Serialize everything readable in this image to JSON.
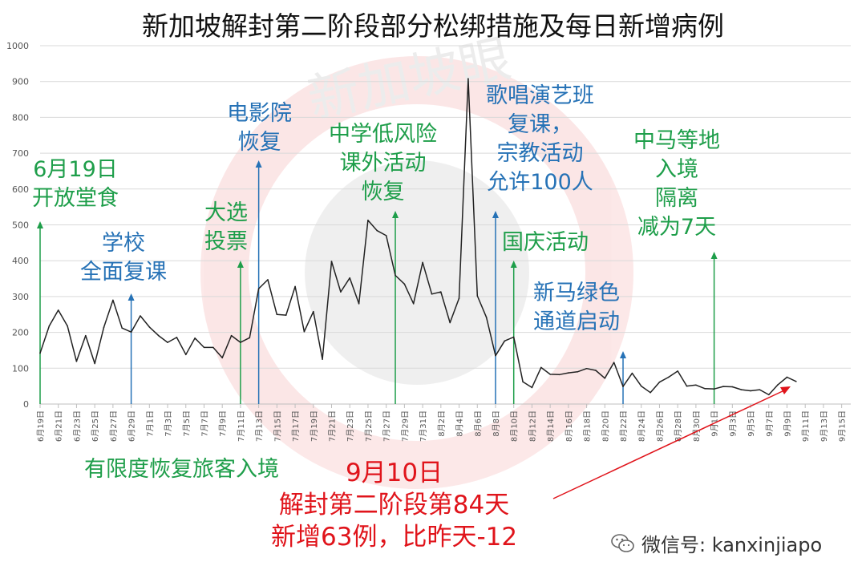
{
  "title": "新加坡解封第二阶段部分松绑措施及每日新增病例",
  "watermark": "新加坡眼",
  "footer": {
    "brand_icon": "wechat-icon",
    "label": "微信号: kanxinjiapo"
  },
  "colors": {
    "line": "#222222",
    "green": "#1e9e4a",
    "blue": "#2672b6",
    "red": "#e0141b",
    "grid": "#d9d9d9",
    "watermark": "#e64a4a"
  },
  "annotations": [
    {
      "id": "dine-in",
      "text": "6月19日\n开放堂食",
      "color": "green",
      "x_index": 0
    },
    {
      "id": "schools",
      "text": "学校\n全面复课",
      "color": "blue",
      "x_index": 10
    },
    {
      "id": "election",
      "text": "大选\n投票",
      "color": "green",
      "x_index": 22
    },
    {
      "id": "cinema",
      "text": "电影院\n恢复",
      "color": "blue",
      "x_index": 24
    },
    {
      "id": "secondary",
      "text": "中学低风险\n课外活动\n恢复",
      "color": "green",
      "x_index": 39
    },
    {
      "id": "singing",
      "text": "歌唱演艺班\n复课，\n宗教活动\n允许100人",
      "color": "blue",
      "x_index": 50
    },
    {
      "id": "national-day",
      "text": "国庆活动",
      "color": "green",
      "x_index": 52
    },
    {
      "id": "green-lane",
      "text": "新马绿色\n通道启动",
      "color": "blue",
      "x_index": 64
    },
    {
      "id": "quarantine",
      "text": "中马等地\n入境\n隔离\n减为7天",
      "color": "green",
      "x_index": 74
    },
    {
      "id": "travellers",
      "text": "有限度恢复旅客入境",
      "color": "green",
      "x_index": null
    },
    {
      "id": "today",
      "text": "9月10日\n解封第二阶段第84天\n新增63例，比昨天-12",
      "color": "red",
      "x_index": 83
    }
  ],
  "chart_data": {
    "type": "line",
    "title": "新加坡解封第二阶段部分松绑措施及每日新增病例",
    "xlabel": "",
    "ylabel": "",
    "ylim": [
      0,
      1000
    ],
    "yticks": [
      0,
      100,
      200,
      300,
      400,
      500,
      600,
      700,
      800,
      900,
      1000
    ],
    "grid": true,
    "legend": "none",
    "x_labels": [
      "6月19日",
      "6月21日",
      "6月23日",
      "6月25日",
      "6月27日",
      "6月29日",
      "7月1日",
      "7月3日",
      "7月5日",
      "7月7日",
      "7月9日",
      "7月11日",
      "7月13日",
      "7月15日",
      "7月17日",
      "7月19日",
      "7月21日",
      "7月23日",
      "7月25日",
      "7月27日",
      "7月29日",
      "7月31日",
      "8月2日",
      "8月4日",
      "8月6日",
      "8月8日",
      "8月10日",
      "8月12日",
      "8月14日",
      "8月16日",
      "8月18日",
      "8月20日",
      "8月22日",
      "8月24日",
      "8月26日",
      "8月28日",
      "8月30日",
      "9月1日",
      "9月3日",
      "9月5日",
      "9月7日",
      "9月9日",
      "9月11日",
      "9月13日",
      "9月15日"
    ],
    "x_range": [
      "6月19日",
      "9月16日"
    ],
    "series": [
      {
        "values": [
          142,
          218,
          262,
          218,
          119,
          191,
          113,
          214,
          290,
          212,
          201,
          246,
          215,
          191,
          172,
          186,
          138,
          184,
          158,
          158,
          129,
          191,
          172,
          185,
          322,
          347,
          250,
          248,
          328,
          202,
          258,
          125,
          398,
          313,
          352,
          280,
          513,
          484,
          470,
          359,
          335,
          280,
          395,
          307,
          313,
          227,
          295,
          908,
          302,
          242,
          135,
          176,
          187,
          62,
          46,
          102,
          83,
          82,
          87,
          90,
          99,
          94,
          72,
          116,
          49,
          86,
          50,
          32,
          61,
          75,
          92,
          50,
          53,
          43,
          42,
          49,
          48,
          40,
          37,
          40,
          26,
          54,
          75,
          63
        ]
      }
    ]
  }
}
